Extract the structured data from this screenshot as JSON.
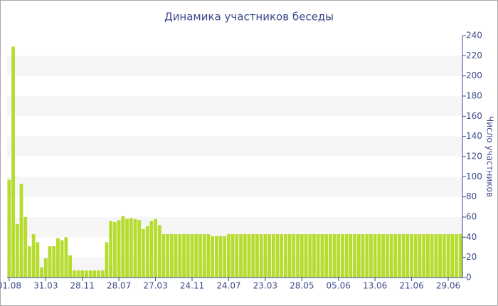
{
  "chart_data": {
    "type": "bar",
    "title": "Динамика участников беседы",
    "y_axis_label": "Число участников",
    "color": "#b5dc2e",
    "grid": "bands",
    "y_axis_side": "right",
    "categories": [
      "01.08",
      null,
      null,
      null,
      null,
      null,
      null,
      null,
      null,
      "31.03",
      null,
      null,
      null,
      null,
      null,
      null,
      null,
      null,
      "28.11",
      null,
      null,
      null,
      null,
      null,
      null,
      null,
      null,
      "28.07",
      null,
      null,
      null,
      null,
      null,
      null,
      null,
      null,
      "27.03",
      null,
      null,
      null,
      null,
      null,
      null,
      null,
      null,
      "24.11",
      null,
      null,
      null,
      null,
      null,
      null,
      null,
      null,
      "24.07",
      null,
      null,
      null,
      null,
      null,
      null,
      null,
      null,
      "23.03",
      null,
      null,
      null,
      null,
      null,
      null,
      null,
      null,
      "28.05",
      null,
      null,
      null,
      null,
      null,
      null,
      null,
      null,
      "05.06",
      null,
      null,
      null,
      null,
      null,
      null,
      null,
      null,
      "13.06",
      null,
      null,
      null,
      null,
      null,
      null,
      null,
      null,
      "21.06",
      null,
      null,
      null,
      null,
      null,
      null,
      null,
      null,
      "29.06",
      null,
      null,
      null
    ],
    "values": [
      97,
      229,
      53,
      93,
      60,
      31,
      43,
      35,
      10,
      19,
      31,
      31,
      39,
      37,
      40,
      22,
      7,
      7,
      7,
      7,
      7,
      7,
      7,
      7,
      35,
      56,
      55,
      57,
      61,
      58,
      59,
      58,
      57,
      48,
      51,
      56,
      58,
      52,
      43,
      43,
      43,
      43,
      43,
      43,
      43,
      43,
      43,
      43,
      43,
      43,
      41,
      41,
      41,
      41,
      43,
      43,
      43,
      43,
      43,
      43,
      43,
      43,
      43,
      43,
      43,
      43,
      43,
      43,
      43,
      43,
      43,
      43,
      43,
      43,
      43,
      43,
      43,
      43,
      43,
      43,
      43,
      43,
      43,
      43,
      43,
      43,
      43,
      43,
      43,
      43,
      43,
      43,
      43,
      43,
      43,
      43,
      43,
      43,
      43,
      43,
      43,
      43,
      43,
      43,
      43,
      43,
      43,
      43,
      43,
      43,
      43,
      43
    ],
    "ylim": [
      0,
      240
    ],
    "yticks": [
      0,
      20,
      40,
      60,
      80,
      100,
      120,
      140,
      160,
      180,
      200,
      220,
      240
    ]
  }
}
